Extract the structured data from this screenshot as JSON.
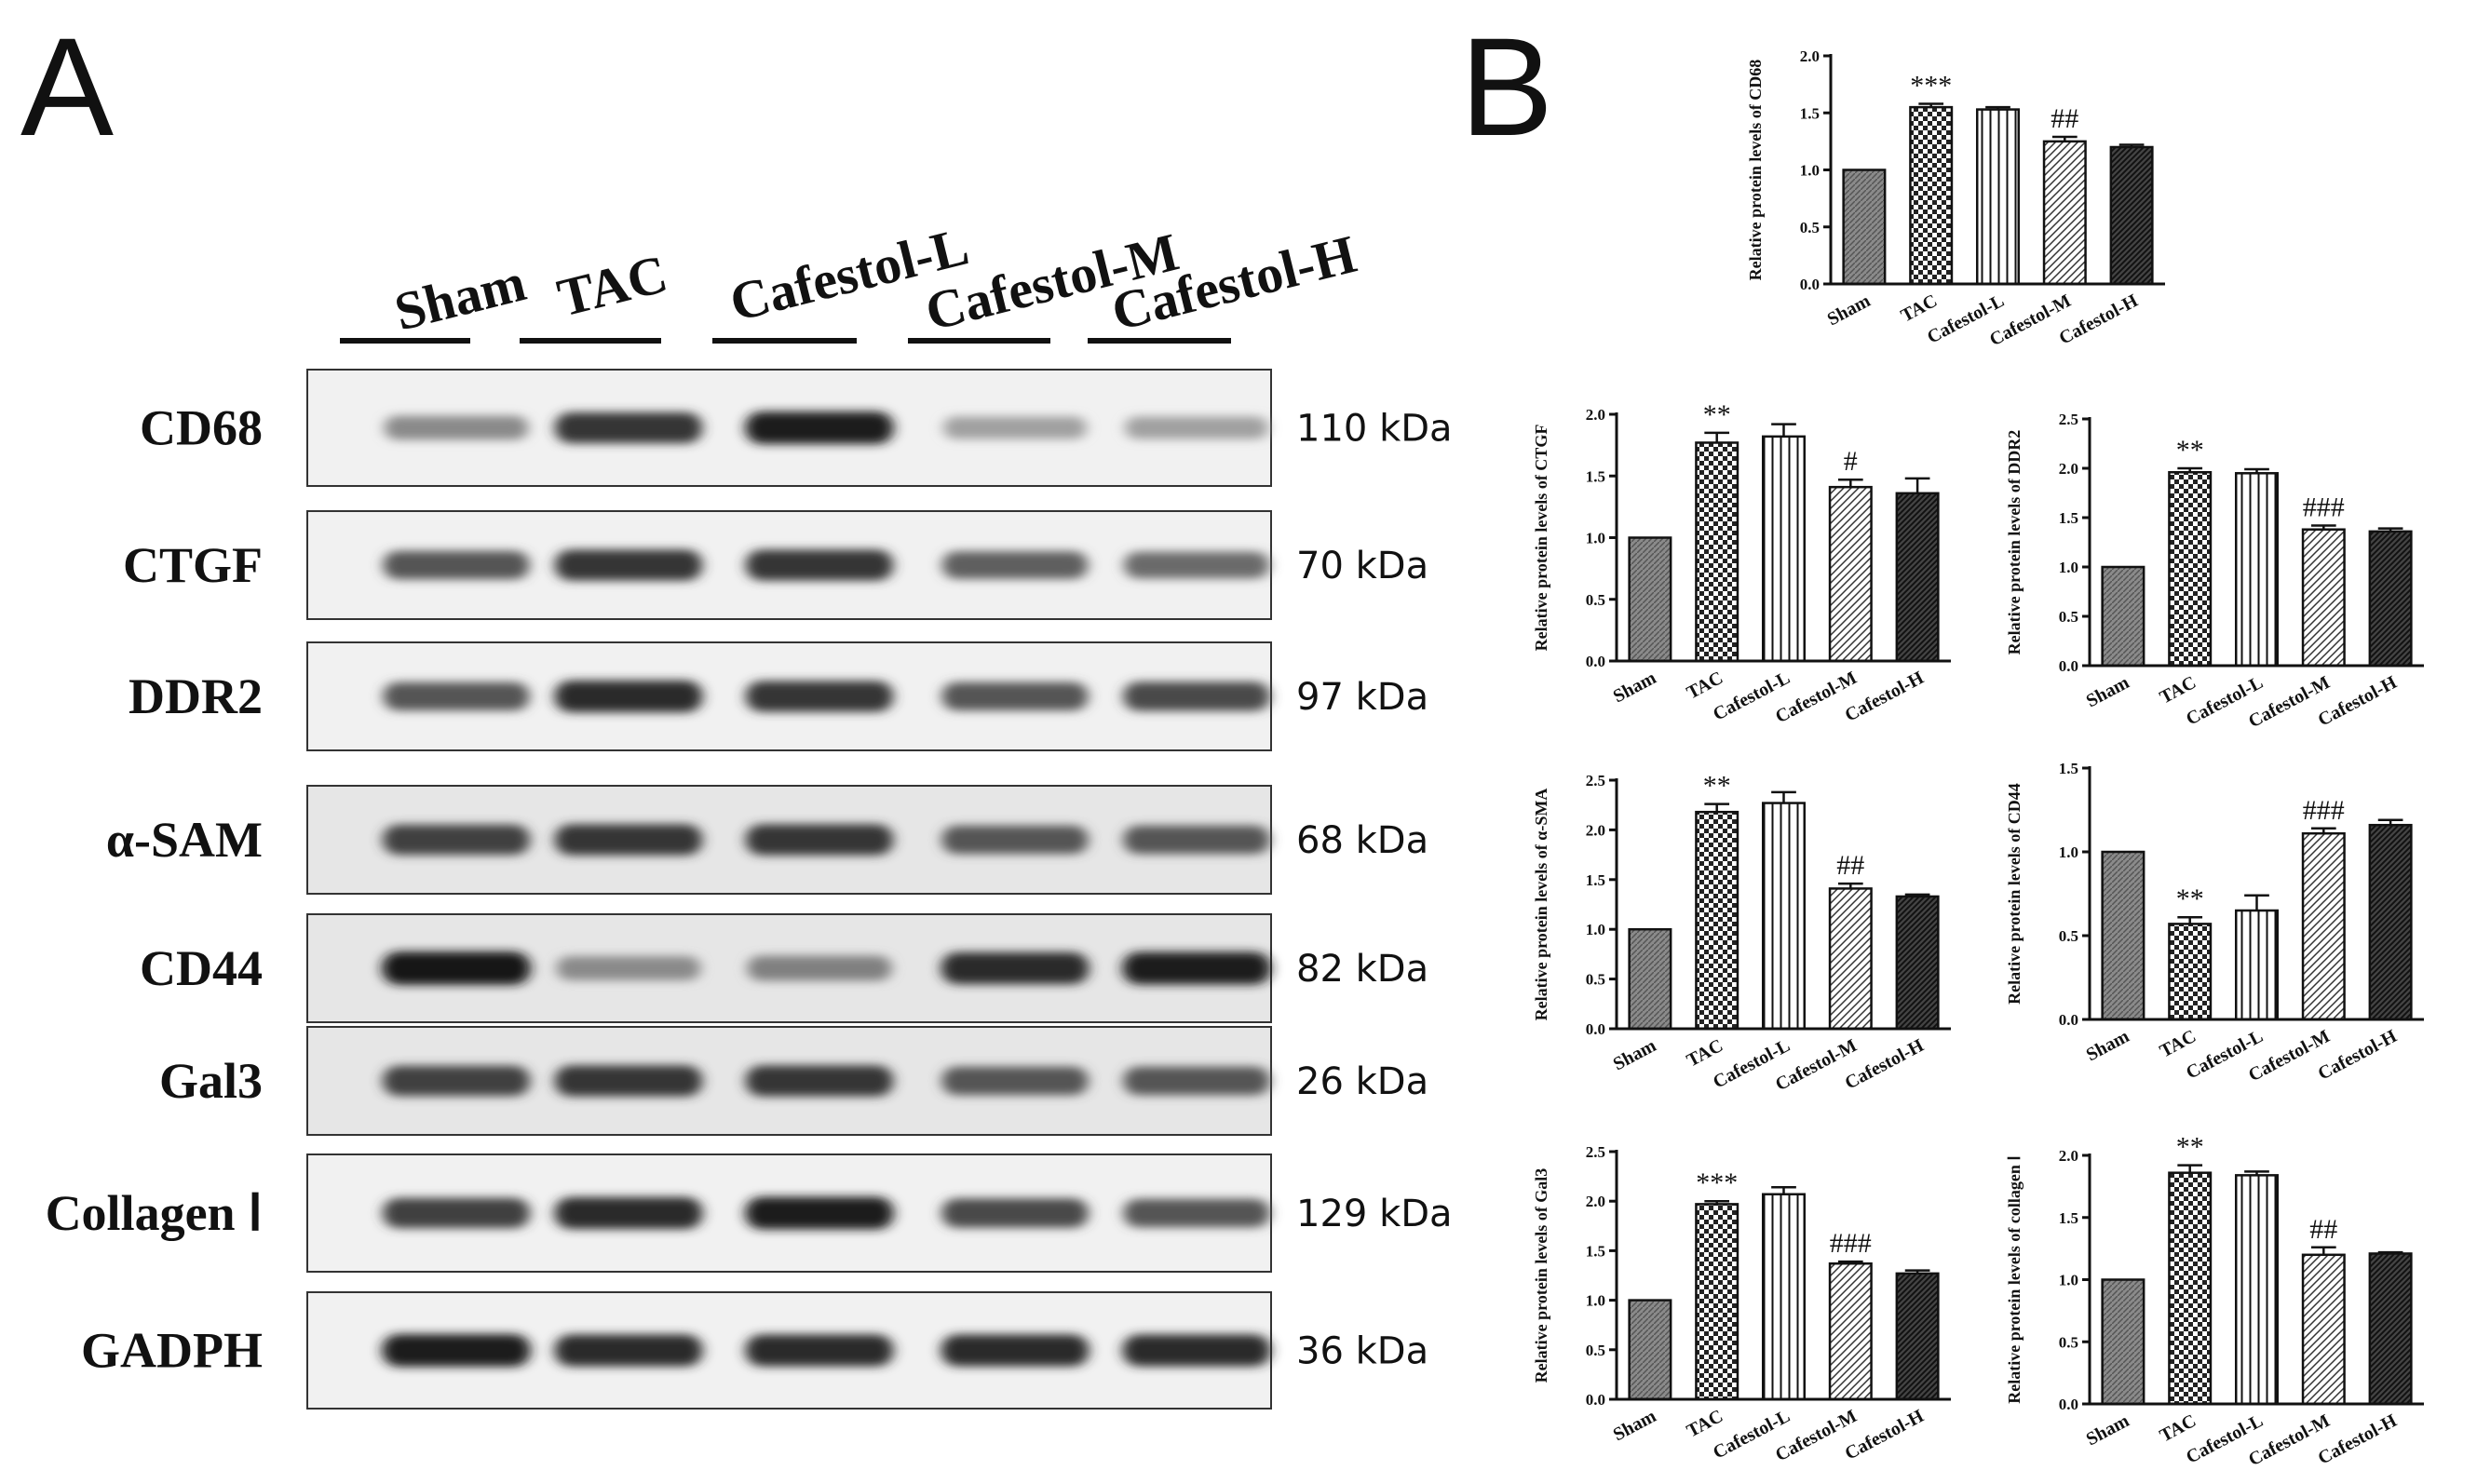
{
  "panel_a": {
    "letter": "A",
    "lanes": [
      "Sham",
      "TAC",
      "Cafestol-L",
      "Cafestol-M",
      "Cafestol-H"
    ],
    "blots": [
      {
        "protein": "CD68",
        "kda": "110 kDa",
        "intensity": [
          0.45,
          0.85,
          0.95,
          0.35,
          0.35
        ]
      },
      {
        "protein": "CTGF",
        "kda": "70 kDa",
        "intensity": [
          0.7,
          0.85,
          0.85,
          0.65,
          0.6
        ]
      },
      {
        "protein": "DDR2",
        "kda": "97 kDa",
        "intensity": [
          0.7,
          0.9,
          0.85,
          0.7,
          0.75
        ]
      },
      {
        "protein": "α-SAM",
        "kda": "68 kDa",
        "intensity": [
          0.8,
          0.85,
          0.85,
          0.7,
          0.7
        ]
      },
      {
        "protein": "CD44",
        "kda": "82 kDa",
        "intensity": [
          0.98,
          0.45,
          0.5,
          0.9,
          0.95
        ]
      },
      {
        "protein": "Gal3",
        "kda": "26 kDa",
        "intensity": [
          0.8,
          0.85,
          0.85,
          0.7,
          0.7
        ]
      },
      {
        "protein": "Collagen Ⅰ",
        "kda": "129 kDa",
        "intensity": [
          0.8,
          0.9,
          0.95,
          0.75,
          0.7
        ]
      },
      {
        "protein": "GADPH",
        "kda": "36 kDa",
        "intensity": [
          0.95,
          0.9,
          0.9,
          0.9,
          0.9
        ]
      }
    ]
  },
  "panel_b": {
    "letter": "B"
  },
  "chart_data": [
    {
      "type": "bar",
      "id": "cd68",
      "ylabel": "Relative protein levels of CD68",
      "categories": [
        "Sham",
        "TAC",
        "Cafestol-L",
        "Cafestol-M",
        "Cafestol-H"
      ],
      "values": [
        1.0,
        1.55,
        1.53,
        1.25,
        1.2
      ],
      "errors": [
        0,
        0.03,
        0.02,
        0.04,
        0.02
      ],
      "significance": [
        "",
        "***",
        "",
        "##",
        ""
      ],
      "ylim": [
        0,
        2.0
      ],
      "yticks": [
        "0.0",
        "0.5",
        "1.0",
        "1.5",
        "2.0"
      ]
    },
    {
      "type": "bar",
      "id": "ctgf",
      "ylabel": "Relative protein levels of CTGF",
      "categories": [
        "Sham",
        "TAC",
        "Cafestol-L",
        "Cafestol-M",
        "Cafestol-H"
      ],
      "values": [
        1.0,
        1.77,
        1.82,
        1.41,
        1.36
      ],
      "errors": [
        0,
        0.08,
        0.1,
        0.06,
        0.12
      ],
      "significance": [
        "",
        "**",
        "",
        "#",
        ""
      ],
      "ylim": [
        0,
        2.0
      ],
      "yticks": [
        "0.0",
        "0.5",
        "1.0",
        "1.5",
        "2.0"
      ]
    },
    {
      "type": "bar",
      "id": "ddr2",
      "ylabel": "Relative protein levels of DDR2",
      "categories": [
        "Sham",
        "TAC",
        "Cafestol-L",
        "Cafestol-M",
        "Cafestol-H"
      ],
      "values": [
        1.0,
        1.96,
        1.95,
        1.38,
        1.36
      ],
      "errors": [
        0,
        0.04,
        0.04,
        0.04,
        0.03
      ],
      "significance": [
        "",
        "**",
        "",
        "###",
        ""
      ],
      "ylim": [
        0,
        2.5
      ],
      "yticks": [
        "0.0",
        "0.5",
        "1.0",
        "1.5",
        "2.0",
        "2.5"
      ]
    },
    {
      "type": "bar",
      "id": "asma",
      "ylabel": "Relative protein levels of α-SMA",
      "categories": [
        "Sham",
        "TAC",
        "Cafestol-L",
        "Cafestol-M",
        "Cafestol-H"
      ],
      "values": [
        1.0,
        2.18,
        2.27,
        1.41,
        1.33
      ],
      "errors": [
        0,
        0.08,
        0.11,
        0.05,
        0.02
      ],
      "significance": [
        "",
        "**",
        "",
        "##",
        ""
      ],
      "ylim": [
        0,
        2.5
      ],
      "yticks": [
        "0.0",
        "0.5",
        "1.0",
        "1.5",
        "2.0",
        "2.5"
      ]
    },
    {
      "type": "bar",
      "id": "cd44",
      "ylabel": "Relative protein levels of CD44",
      "categories": [
        "Sham",
        "TAC",
        "Cafestol-L",
        "Cafestol-M",
        "Cafestol-H"
      ],
      "values": [
        1.0,
        0.57,
        0.65,
        1.11,
        1.16
      ],
      "errors": [
        0,
        0.04,
        0.09,
        0.03,
        0.03
      ],
      "significance": [
        "",
        "**",
        "",
        "###",
        ""
      ],
      "ylim": [
        0,
        1.5
      ],
      "yticks": [
        "0.0",
        "0.5",
        "1.0",
        "1.5"
      ]
    },
    {
      "type": "bar",
      "id": "gal3",
      "ylabel": "Relative protein levels of Gal3",
      "categories": [
        "Sham",
        "TAC",
        "Cafestol-L",
        "Cafestol-M",
        "Cafestol-H"
      ],
      "values": [
        1.0,
        1.97,
        2.07,
        1.37,
        1.27
      ],
      "errors": [
        0,
        0.03,
        0.07,
        0.02,
        0.03
      ],
      "significance": [
        "",
        "***",
        "",
        "###",
        ""
      ],
      "ylim": [
        0,
        2.5
      ],
      "yticks": [
        "0.0",
        "0.5",
        "1.0",
        "1.5",
        "2.0",
        "2.5"
      ]
    },
    {
      "type": "bar",
      "id": "col1",
      "ylabel": "Relative protein levels of collagen Ⅰ",
      "categories": [
        "Sham",
        "TAC",
        "Cafestol-L",
        "Cafestol-M",
        "Cafestol-H"
      ],
      "values": [
        1.0,
        1.86,
        1.84,
        1.2,
        1.21
      ],
      "errors": [
        0,
        0.06,
        0.03,
        0.06,
        0.01
      ],
      "significance": [
        "",
        "**",
        "",
        "##",
        ""
      ],
      "ylim": [
        0,
        2.0
      ],
      "yticks": [
        "0.0",
        "0.5",
        "1.0",
        "1.5",
        "2.0"
      ]
    }
  ]
}
